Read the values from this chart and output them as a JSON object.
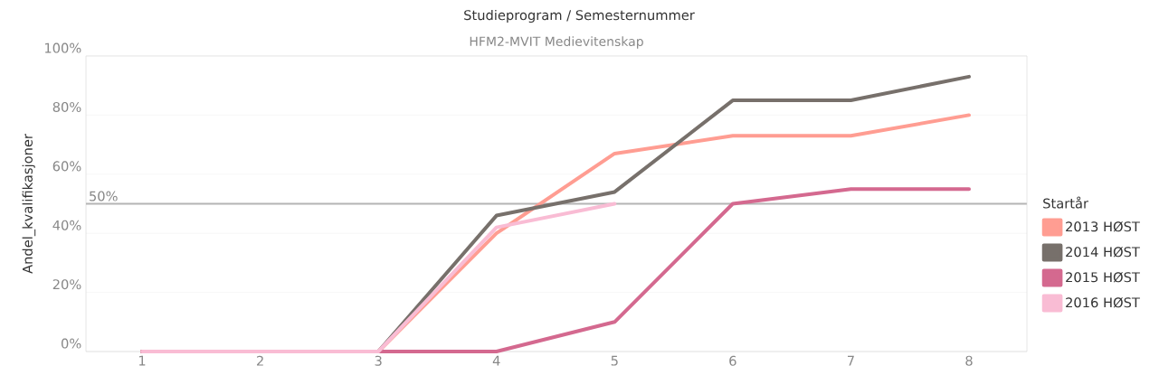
{
  "chart_data": {
    "type": "line",
    "title": "Studieprogram / Semesternummer",
    "subtitle": "HFM2-MVIT Medievitenskap",
    "ylabel": "Andel_kvalifikasjoner",
    "legend_title": "Startår",
    "categories": [
      "1",
      "2",
      "3",
      "4",
      "5",
      "6",
      "7",
      "8"
    ],
    "series": [
      {
        "name": "2013 HØST",
        "color": "#ff9d92",
        "values": [
          0,
          0,
          0,
          40,
          67,
          73,
          73,
          80
        ]
      },
      {
        "name": "2014 HØST",
        "color": "#77706b",
        "values": [
          0,
          0,
          0,
          46,
          54,
          85,
          85,
          93
        ]
      },
      {
        "name": "2015 HØST",
        "color": "#d4698f",
        "values": [
          0,
          0,
          0,
          0,
          10,
          50,
          55,
          55
        ]
      },
      {
        "name": "2016 HØST",
        "color": "#f9bcd4",
        "values": [
          0,
          0,
          0,
          42,
          50,
          null,
          null,
          null
        ]
      }
    ],
    "ylim": [
      0,
      100
    ],
    "yticks": [
      {
        "value": 0,
        "label": "0%"
      },
      {
        "value": 20,
        "label": "20%"
      },
      {
        "value": 40,
        "label": "40%"
      },
      {
        "value": 60,
        "label": "60%"
      },
      {
        "value": 80,
        "label": "80%"
      },
      {
        "value": 100,
        "label": "100%"
      }
    ],
    "ref_lines": [
      {
        "axis": "y",
        "value": 50,
        "label": "50%",
        "color": "#b4b4b4"
      }
    ],
    "grid": "y",
    "legend": "right",
    "marker": "none",
    "line_style": "solid"
  }
}
